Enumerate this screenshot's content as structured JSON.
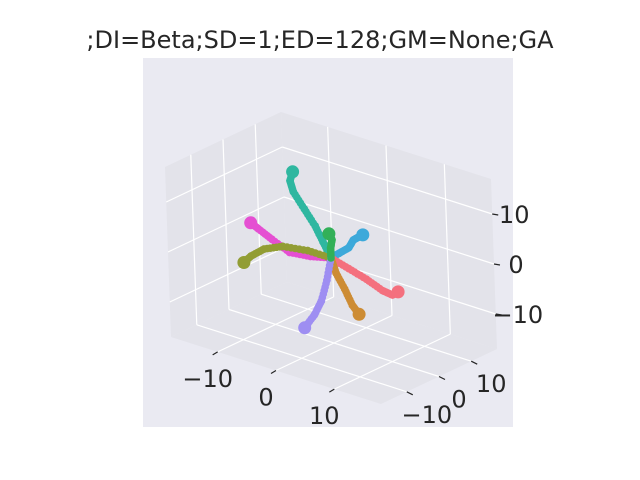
{
  "chart_data": {
    "type": "scatter",
    "projection": "3d",
    "title": ";DI=Beta;SD=1;ED=128;GM=None;GA",
    "xlabel": "",
    "ylabel": "",
    "zlabel": "",
    "grid": true,
    "legend": "none",
    "style": {
      "pane_color": "#eaeaf2",
      "pane_side_color": "#e3e3ea",
      "grid_color": "#ffffff"
    },
    "x_ticks": [
      "−10",
      "0",
      "10"
    ],
    "y_ticks": [
      "−10",
      "0",
      "10"
    ],
    "z_ticks": [
      "−10",
      "0",
      "10"
    ],
    "xlim": [
      -18,
      18
    ],
    "ylim": [
      -18,
      18
    ],
    "zlim": [
      -17,
      17
    ],
    "series": [
      {
        "color": "#2fb7a0",
        "points": [
          [
            0,
            0,
            0
          ],
          [
            -1,
            -0.5,
            3
          ],
          [
            -2,
            -1,
            6
          ],
          [
            -3.5,
            -1.5,
            9
          ],
          [
            -5,
            -2,
            12
          ],
          [
            -5.5,
            -2,
            14
          ],
          [
            -5,
            -2,
            16
          ]
        ]
      },
      {
        "color": "#3da9da",
        "points": [
          [
            0,
            0,
            0
          ],
          [
            2,
            -1,
            2
          ],
          [
            4,
            -1.5,
            4
          ],
          [
            5,
            -1.8,
            6
          ],
          [
            6,
            -2,
            7
          ],
          [
            6.5,
            -1.5,
            7.5
          ]
        ]
      },
      {
        "color": "#e54fd2",
        "points": [
          [
            0,
            0,
            0
          ],
          [
            -3,
            -1,
            -0.5
          ],
          [
            -6,
            -2,
            -0.5
          ],
          [
            -9,
            -2,
            1
          ],
          [
            -11,
            -2.5,
            2.5
          ],
          [
            -12,
            -3,
            3.5
          ]
        ]
      },
      {
        "color": "#929d34",
        "points": [
          [
            0,
            0,
            0
          ],
          [
            -4,
            0,
            0
          ],
          [
            -8,
            -0.5,
            -0.5
          ],
          [
            -11,
            -1,
            -2
          ],
          [
            -13,
            -1.5,
            -4
          ],
          [
            -14,
            -2,
            -5.5
          ]
        ]
      },
      {
        "color": "#f4707e",
        "points": [
          [
            0,
            0,
            0
          ],
          [
            3,
            0,
            -1
          ],
          [
            6,
            0,
            -2
          ],
          [
            9,
            -0.5,
            -3
          ],
          [
            11,
            -1,
            -3
          ],
          [
            12,
            -1,
            -2
          ]
        ]
      },
      {
        "color": "#cd8c34",
        "points": [
          [
            0,
            0,
            0
          ],
          [
            0.5,
            0.5,
            -3
          ],
          [
            1.5,
            1.2,
            -6
          ],
          [
            2.5,
            1.6,
            -9
          ],
          [
            3.5,
            1.8,
            -10.5
          ]
        ]
      },
      {
        "color": "#9e8ef2",
        "points": [
          [
            0,
            0,
            0
          ],
          [
            0,
            -1.5,
            -4
          ],
          [
            -0.5,
            -2.5,
            -8
          ],
          [
            -1.5,
            -3,
            -11
          ],
          [
            -3,
            -3.5,
            -14
          ]
        ]
      },
      {
        "color": "#32b058",
        "points": [
          [
            0,
            0,
            0
          ],
          [
            0,
            0,
            2
          ],
          [
            0,
            0.5,
            3.5
          ],
          [
            -0.5,
            0.5,
            4.5
          ]
        ]
      }
    ]
  }
}
